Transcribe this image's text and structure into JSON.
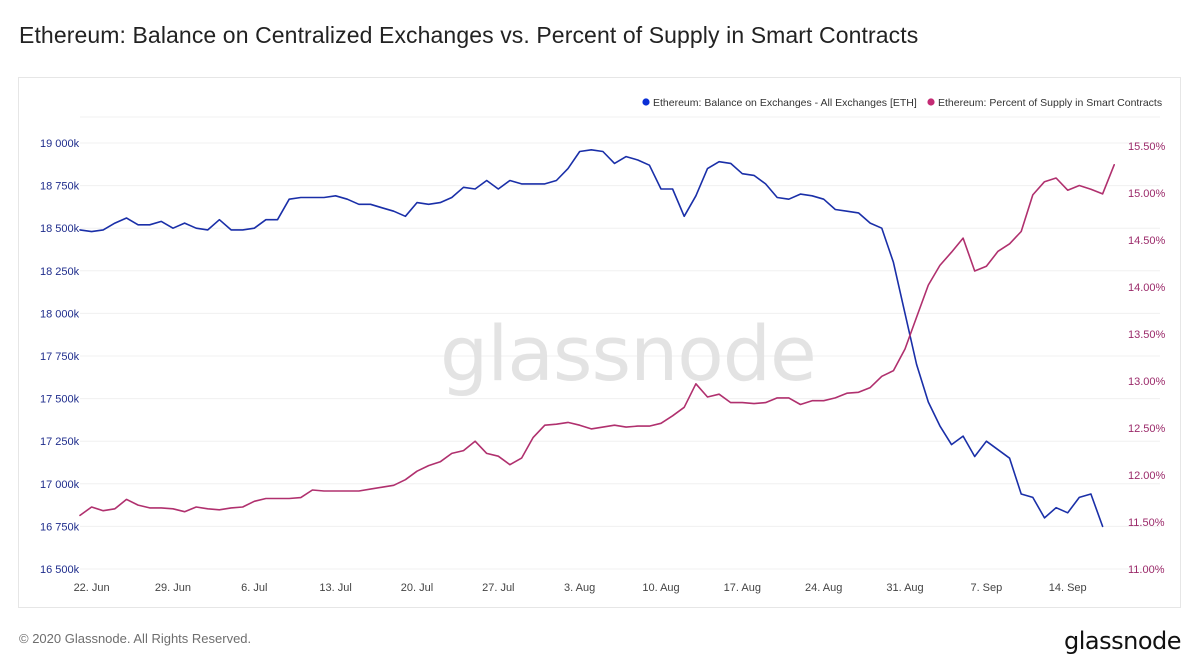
{
  "title": "Ethereum: Balance on Centralized Exchanges vs. Percent of Supply in Smart Contracts",
  "footer": {
    "copyright": "© 2020 Glassnode. All Rights Reserved.",
    "brand": "glassnode"
  },
  "watermark": "glassnode",
  "colors": {
    "eth_series": "#1a2fa8",
    "pct_series": "#b0306e",
    "legend_eth_dot": "#0a2fd6",
    "legend_pct_dot": "#c42b74",
    "grid": "#f0f0f0"
  },
  "chart_data": {
    "type": "line",
    "title": "Ethereum: Balance on Centralized Exchanges vs. Percent of Supply in Smart Contracts",
    "xlabel": "",
    "legend_position": "top-right",
    "grid": true,
    "x_start_date": "21 Jun",
    "x_step_days": 1,
    "x_tick_labels": [
      "22. Jun",
      "29. Jun",
      "6. Jul",
      "13. Jul",
      "20. Jul",
      "27. Jul",
      "3. Aug",
      "10. Aug",
      "17. Aug",
      "24. Aug",
      "31. Aug",
      "7. Sep",
      "14. Sep"
    ],
    "x_tick_day_index": [
      1,
      8,
      15,
      22,
      29,
      36,
      43,
      50,
      57,
      64,
      71,
      78,
      85
    ],
    "y_left": {
      "label": "",
      "unit": "k ETH",
      "range": [
        16500,
        19000
      ],
      "ticks": [
        19000,
        18750,
        18500,
        18250,
        18000,
        17750,
        17500,
        17250,
        17000,
        16750,
        16500
      ],
      "tick_labels": [
        "19 000k",
        "18 750k",
        "18 500k",
        "18 250k",
        "18 000k",
        "17 750k",
        "17 500k",
        "17 250k",
        "17 000k",
        "16 750k",
        "16 500k"
      ]
    },
    "y_right": {
      "label": "",
      "unit": "%",
      "range": [
        11.0,
        15.5
      ],
      "ticks": [
        15.5,
        15.0,
        14.5,
        14.0,
        13.5,
        13.0,
        12.5,
        12.0,
        11.5,
        11.0
      ],
      "tick_labels": [
        "15.50%",
        "15.00%",
        "14.50%",
        "14.00%",
        "13.50%",
        "13.00%",
        "12.50%",
        "12.00%",
        "11.50%",
        "11.00%"
      ]
    },
    "series": [
      {
        "name": "Ethereum: Balance on Exchanges - All Exchanges [ETH]",
        "axis": "left",
        "values": [
          18490,
          18480,
          18490,
          18530,
          18560,
          18520,
          18520,
          18540,
          18500,
          18530,
          18500,
          18490,
          18550,
          18490,
          18490,
          18500,
          18550,
          18550,
          18670,
          18680,
          18680,
          18680,
          18690,
          18670,
          18640,
          18640,
          18620,
          18600,
          18570,
          18650,
          18640,
          18650,
          18680,
          18740,
          18730,
          18780,
          18730,
          18780,
          18760,
          18760,
          18760,
          18780,
          18850,
          18950,
          18960,
          18950,
          18880,
          18920,
          18900,
          18870,
          18730,
          18730,
          18570,
          18690,
          18850,
          18890,
          18880,
          18820,
          18810,
          18760,
          18680,
          18670,
          18700,
          18690,
          18670,
          18610,
          18600,
          18590,
          18530,
          18500,
          18300,
          18000,
          17700,
          17480,
          17340,
          17230,
          17280,
          17160,
          17250,
          17200,
          17150,
          16940,
          16920,
          16800,
          16860,
          16830,
          16920,
          16940,
          16750
        ]
      },
      {
        "name": "Ethereum: Percent of Supply in Smart Contracts",
        "axis": "right",
        "values": [
          11.57,
          11.66,
          11.62,
          11.64,
          11.74,
          11.68,
          11.65,
          11.65,
          11.64,
          11.61,
          11.66,
          11.64,
          11.63,
          11.65,
          11.66,
          11.72,
          11.75,
          11.75,
          11.75,
          11.76,
          11.84,
          11.83,
          11.83,
          11.83,
          11.83,
          11.85,
          11.87,
          11.89,
          11.95,
          12.04,
          12.1,
          12.14,
          12.23,
          12.26,
          12.36,
          12.23,
          12.2,
          12.11,
          12.18,
          12.4,
          12.53,
          12.54,
          12.56,
          12.53,
          12.49,
          12.51,
          12.53,
          12.51,
          12.52,
          12.52,
          12.55,
          12.63,
          12.72,
          12.97,
          12.83,
          12.86,
          12.77,
          12.77,
          12.76,
          12.77,
          12.82,
          12.82,
          12.75,
          12.79,
          12.79,
          12.82,
          12.87,
          12.88,
          12.93,
          13.05,
          13.11,
          13.34,
          13.68,
          14.02,
          14.23,
          14.37,
          14.52,
          14.17,
          14.22,
          14.38,
          14.46,
          14.59,
          14.98,
          15.12,
          15.16,
          15.03,
          15.08,
          15.04,
          14.99,
          15.3
        ]
      }
    ]
  }
}
